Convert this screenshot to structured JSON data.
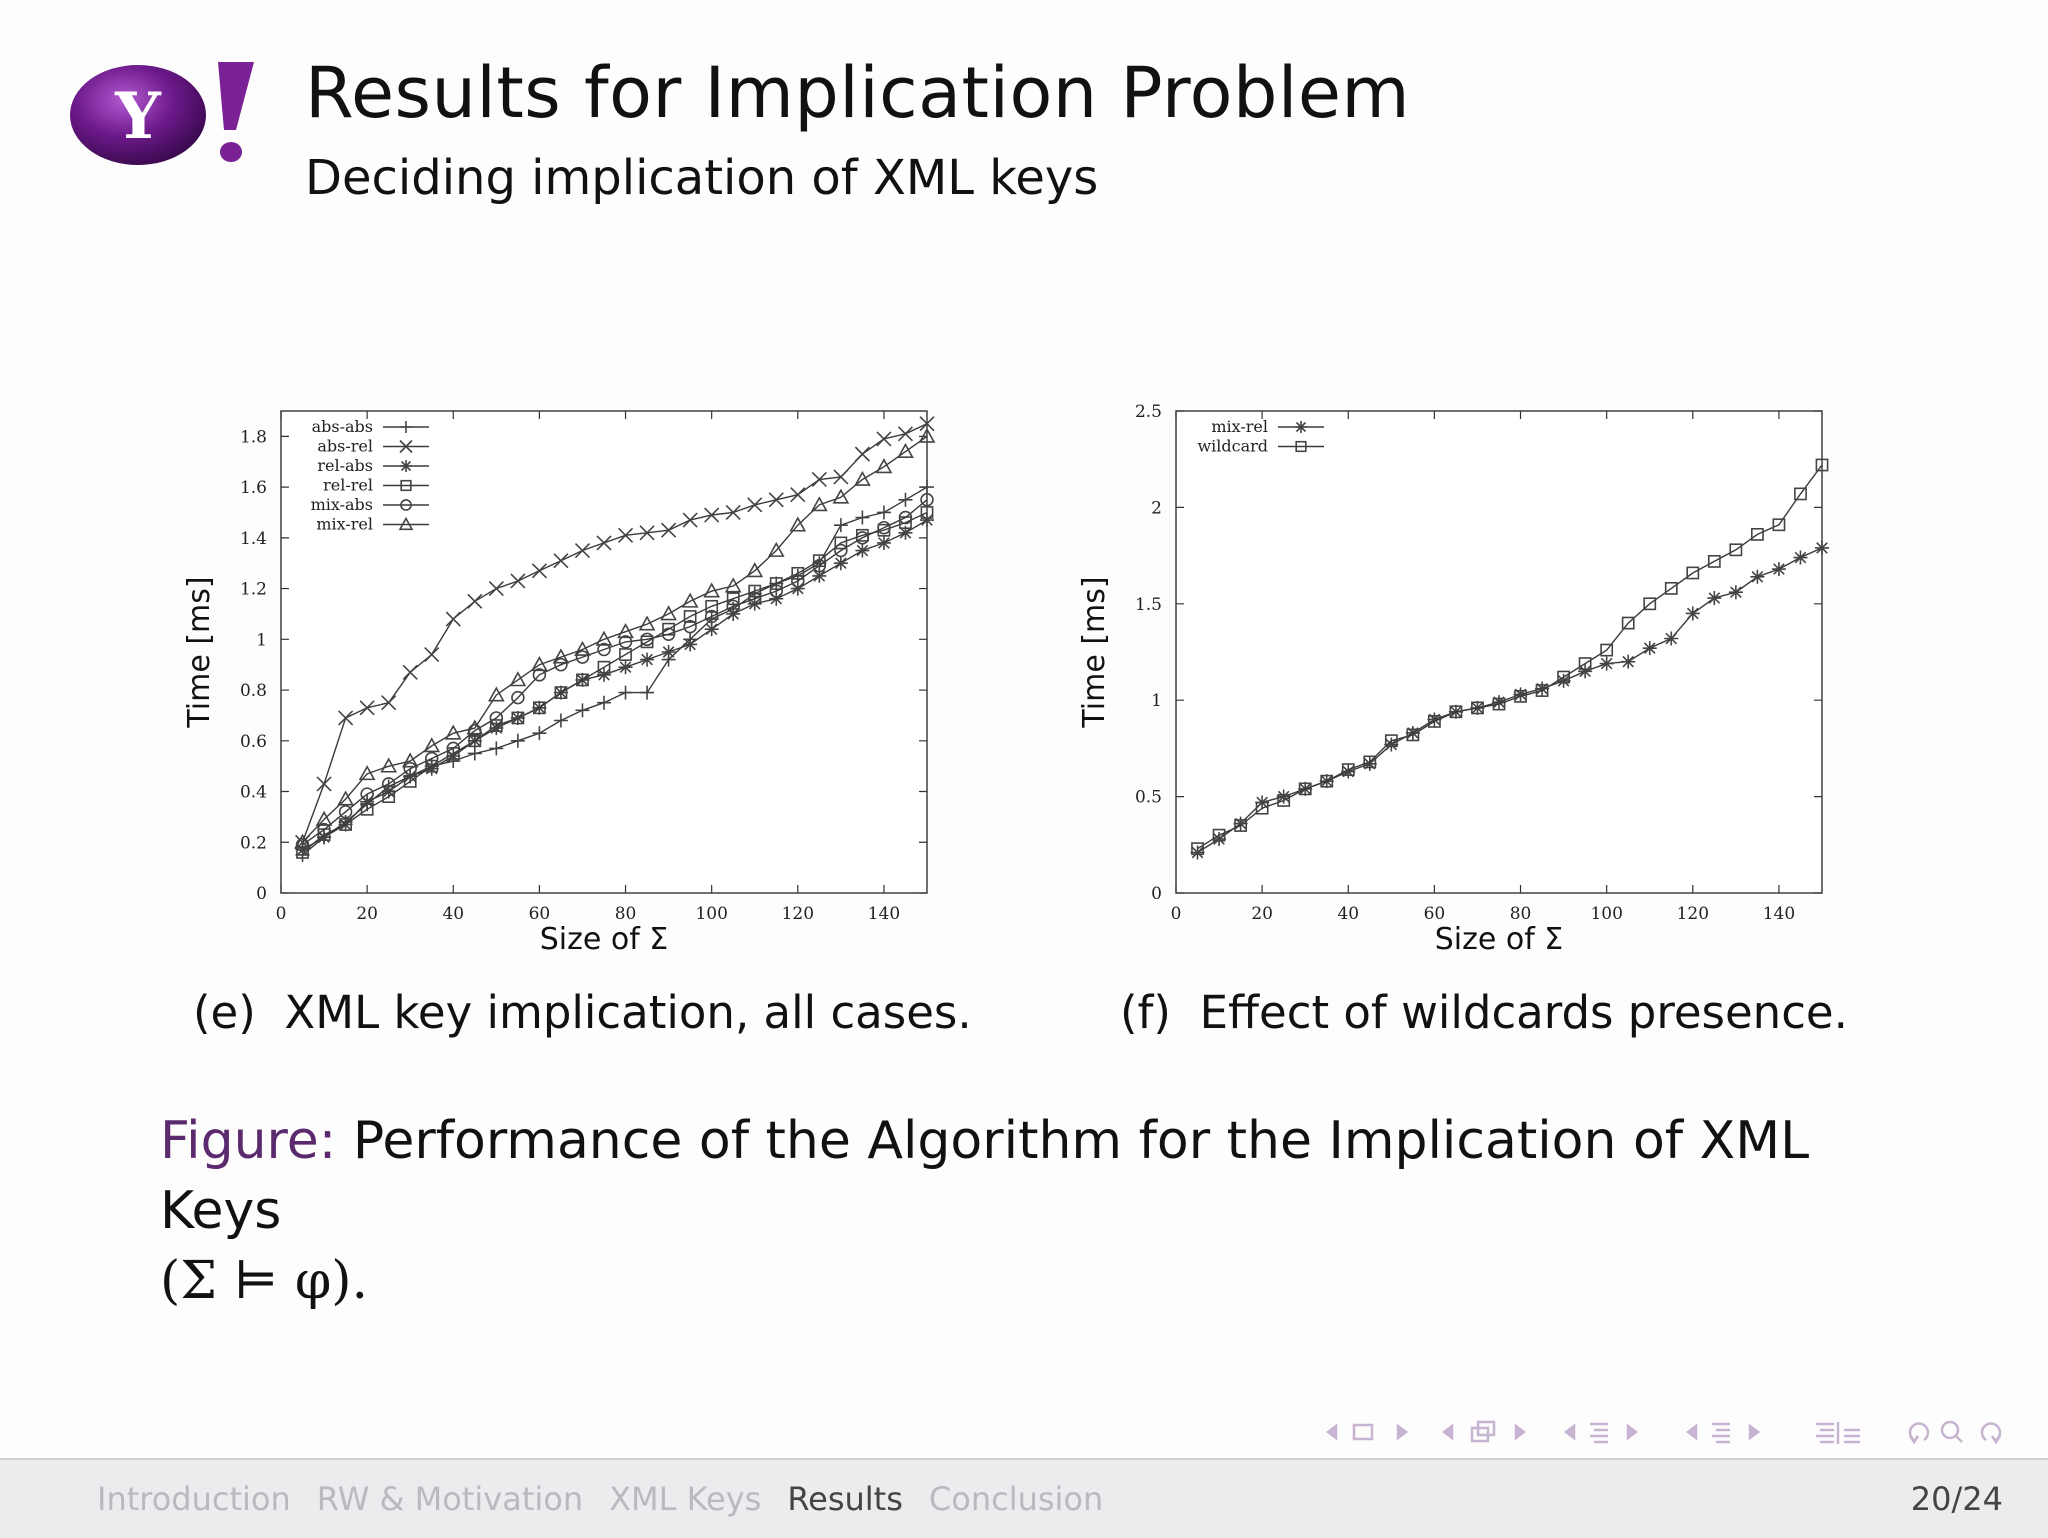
{
  "header": {
    "logo_text": "Y!",
    "title": "Results for Implication Problem",
    "subtitle": "Deciding implication of XML keys"
  },
  "captions": {
    "left_tag": "(e)",
    "left_text": "XML key implication, all cases.",
    "right_tag": "(f)",
    "right_text": "Effect of wildcards presence."
  },
  "figure_caption": {
    "label": "Figure:",
    "text": "Performance of the Algorithm for the Implication of XML Keys",
    "formula": "(Σ ⊨ φ)."
  },
  "nav_icons": [
    "arrow-left-icon",
    "frame-icon",
    "arrow-right-icon",
    "arrow-left-icon",
    "subsection-icon",
    "arrow-right-icon",
    "arrow-left-icon",
    "section-icon",
    "arrow-right-icon",
    "arrow-left-icon",
    "section-icon",
    "arrow-right-icon",
    "align-icon",
    "undo-icon",
    "search-icon",
    "redo-icon"
  ],
  "footer": {
    "sections": [
      "Introduction",
      "RW & Motivation",
      "XML Keys",
      "Results",
      "Conclusion"
    ],
    "active_section": "Results",
    "page": "20/24"
  },
  "colors": {
    "accent": "#5b2a6e",
    "footer_bg": "#ececee"
  },
  "chart_data": [
    {
      "type": "line",
      "xlabel": "Size of Σ",
      "ylabel": "Time [ms]",
      "xlim": [
        0,
        150
      ],
      "ylim": [
        0,
        1.9
      ],
      "xticks": [
        0,
        20,
        40,
        60,
        80,
        100,
        120,
        140
      ],
      "yticks": [
        0,
        0.2,
        0.4,
        0.6,
        0.8,
        1,
        1.2,
        1.4,
        1.6,
        1.8
      ],
      "legend": "top-left",
      "x": [
        5,
        10,
        15,
        20,
        25,
        30,
        35,
        40,
        45,
        50,
        55,
        60,
        65,
        70,
        75,
        80,
        85,
        90,
        95,
        100,
        105,
        110,
        115,
        120,
        125,
        130,
        135,
        140,
        145,
        150
      ],
      "series": [
        {
          "name": "abs-abs",
          "marker": "plus",
          "values": [
            0.15,
            0.22,
            0.28,
            0.35,
            0.42,
            0.46,
            0.5,
            0.52,
            0.55,
            0.57,
            0.6,
            0.63,
            0.68,
            0.72,
            0.75,
            0.79,
            0.79,
            0.92,
            1.0,
            1.08,
            1.12,
            1.18,
            1.22,
            1.25,
            1.3,
            1.45,
            1.48,
            1.5,
            1.55,
            1.6
          ]
        },
        {
          "name": "abs-rel",
          "marker": "x",
          "values": [
            0.2,
            0.43,
            0.69,
            0.73,
            0.75,
            0.87,
            0.94,
            1.08,
            1.15,
            1.2,
            1.23,
            1.27,
            1.31,
            1.35,
            1.38,
            1.41,
            1.42,
            1.43,
            1.47,
            1.49,
            1.5,
            1.53,
            1.55,
            1.57,
            1.63,
            1.64,
            1.73,
            1.79,
            1.81,
            1.85
          ]
        },
        {
          "name": "rel-abs",
          "marker": "asterisk",
          "values": [
            0.17,
            0.22,
            0.27,
            0.36,
            0.4,
            0.46,
            0.49,
            0.54,
            0.6,
            0.65,
            0.69,
            0.73,
            0.79,
            0.84,
            0.86,
            0.89,
            0.92,
            0.95,
            0.98,
            1.04,
            1.1,
            1.14,
            1.16,
            1.2,
            1.25,
            1.3,
            1.35,
            1.38,
            1.42,
            1.47
          ]
        },
        {
          "name": "rel-rel",
          "marker": "square",
          "values": [
            0.16,
            0.23,
            0.27,
            0.33,
            0.38,
            0.44,
            0.5,
            0.55,
            0.6,
            0.66,
            0.69,
            0.73,
            0.79,
            0.84,
            0.89,
            0.94,
            0.99,
            1.04,
            1.09,
            1.13,
            1.16,
            1.19,
            1.22,
            1.26,
            1.31,
            1.38,
            1.41,
            1.43,
            1.46,
            1.5
          ]
        },
        {
          "name": "mix-abs",
          "marker": "circle",
          "values": [
            0.19,
            0.25,
            0.32,
            0.39,
            0.43,
            0.49,
            0.53,
            0.57,
            0.64,
            0.69,
            0.77,
            0.86,
            0.9,
            0.93,
            0.96,
            0.99,
            1.0,
            1.02,
            1.05,
            1.09,
            1.13,
            1.16,
            1.19,
            1.23,
            1.29,
            1.35,
            1.4,
            1.44,
            1.48,
            1.55
          ]
        },
        {
          "name": "mix-rel",
          "marker": "triangle",
          "values": [
            0.2,
            0.29,
            0.37,
            0.47,
            0.5,
            0.52,
            0.58,
            0.63,
            0.65,
            0.78,
            0.84,
            0.9,
            0.93,
            0.96,
            1.0,
            1.03,
            1.06,
            1.1,
            1.15,
            1.19,
            1.21,
            1.27,
            1.35,
            1.45,
            1.53,
            1.56,
            1.63,
            1.68,
            1.74,
            1.8
          ]
        }
      ]
    },
    {
      "type": "line",
      "xlabel": "Size of Σ",
      "ylabel": "Time [ms]",
      "xlim": [
        0,
        150
      ],
      "ylim": [
        0,
        2.5
      ],
      "xticks": [
        0,
        20,
        40,
        60,
        80,
        100,
        120,
        140
      ],
      "yticks": [
        0,
        0.5,
        1,
        1.5,
        2,
        2.5
      ],
      "legend": "top-left",
      "x": [
        5,
        10,
        15,
        20,
        25,
        30,
        35,
        40,
        45,
        50,
        55,
        60,
        65,
        70,
        75,
        80,
        85,
        90,
        95,
        100,
        105,
        110,
        115,
        120,
        125,
        130,
        135,
        140,
        145,
        150
      ],
      "series": [
        {
          "name": "mix-rel",
          "marker": "asterisk",
          "values": [
            0.21,
            0.28,
            0.36,
            0.47,
            0.5,
            0.54,
            0.58,
            0.63,
            0.67,
            0.77,
            0.83,
            0.9,
            0.94,
            0.96,
            0.99,
            1.03,
            1.06,
            1.1,
            1.15,
            1.19,
            1.2,
            1.27,
            1.32,
            1.45,
            1.53,
            1.56,
            1.64,
            1.68,
            1.74,
            1.79
          ]
        },
        {
          "name": "wildcard",
          "marker": "square",
          "values": [
            0.23,
            0.3,
            0.35,
            0.44,
            0.48,
            0.54,
            0.58,
            0.64,
            0.68,
            0.79,
            0.82,
            0.89,
            0.94,
            0.96,
            0.98,
            1.02,
            1.05,
            1.12,
            1.19,
            1.26,
            1.4,
            1.5,
            1.58,
            1.66,
            1.72,
            1.78,
            1.86,
            1.91,
            2.07,
            2.22
          ]
        }
      ]
    }
  ]
}
